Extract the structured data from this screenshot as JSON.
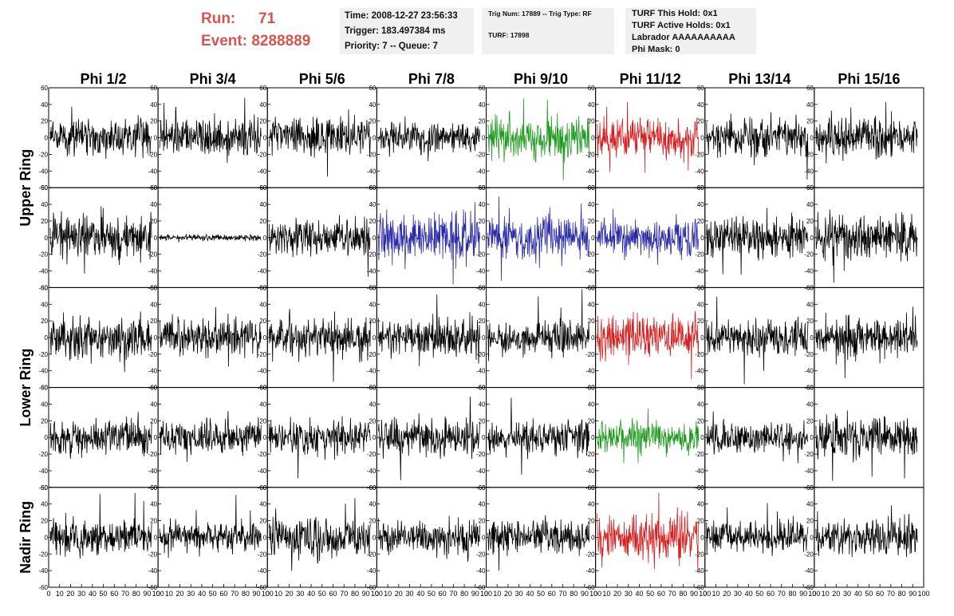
{
  "header": {
    "run_label": "Run:",
    "run_value": "71",
    "event_label": "Event:",
    "event_value": "8288889",
    "time": "Time: 2008-12-27 23:56:33",
    "trigger": "Trigger: 183.497384 ms",
    "priority": "Priority: 7 -- Queue: 7",
    "trig_num": "Trig Num: 17889 -- Trig Type: RF",
    "turf": "TURF: 17898",
    "turf_this_hold": "TURF This Hold: 0x1",
    "turf_active_holds": "TURF Active Holds: 0x1",
    "labrador": "Labrador AAAAAAAAAA",
    "phi_mask": "Phi Mask: 0"
  },
  "chart_data": {
    "type": "line",
    "columns": [
      "Phi 1/2",
      "Phi 3/4",
      "Phi 5/6",
      "Phi 7/8",
      "Phi 9/10",
      "Phi 11/12",
      "Phi 13/14",
      "Phi 15/16"
    ],
    "ring_labels": [
      {
        "name": "Upper Ring",
        "rows": [
          0,
          1
        ]
      },
      {
        "name": "Lower Ring",
        "rows": [
          2,
          3
        ]
      },
      {
        "name": "Nadir Ring",
        "rows": [
          4
        ]
      }
    ],
    "xlim": [
      0,
      100
    ],
    "ylim": [
      -60,
      60
    ],
    "x_ticks": [
      "0",
      "10",
      "20",
      "30",
      "40",
      "50",
      "60",
      "70",
      "80",
      "90",
      "100"
    ],
    "y_ticks": [
      "-60",
      "-40",
      "-20",
      "0",
      "20",
      "40",
      "60"
    ],
    "colors": {
      "default": "#000000",
      "green": "#1e9a1e",
      "red": "#d62020",
      "blue": "#2a2aa8"
    },
    "panel_colors": [
      [
        "black",
        "black",
        "black",
        "black",
        "green",
        "red",
        "black",
        "black"
      ],
      [
        "black",
        "black",
        "black",
        "blue",
        "blue",
        "blue",
        "black",
        "black"
      ],
      [
        "black",
        "black",
        "black",
        "black",
        "black",
        "red",
        "black",
        "black"
      ],
      [
        "black",
        "black",
        "black",
        "black",
        "black",
        "green",
        "black",
        "black"
      ],
      [
        "black",
        "black",
        "black",
        "black",
        "black",
        "red",
        "black",
        "black"
      ]
    ],
    "panel_amplitude": [
      [
        12,
        12,
        12,
        10,
        14,
        12,
        12,
        13
      ],
      [
        14,
        2,
        12,
        15,
        15,
        12,
        12,
        15
      ],
      [
        13,
        12,
        13,
        12,
        11,
        14,
        11,
        12
      ],
      [
        12,
        10,
        11,
        12,
        11,
        11,
        9,
        14
      ],
      [
        12,
        10,
        12,
        11,
        11,
        15,
        10,
        11
      ]
    ]
  }
}
